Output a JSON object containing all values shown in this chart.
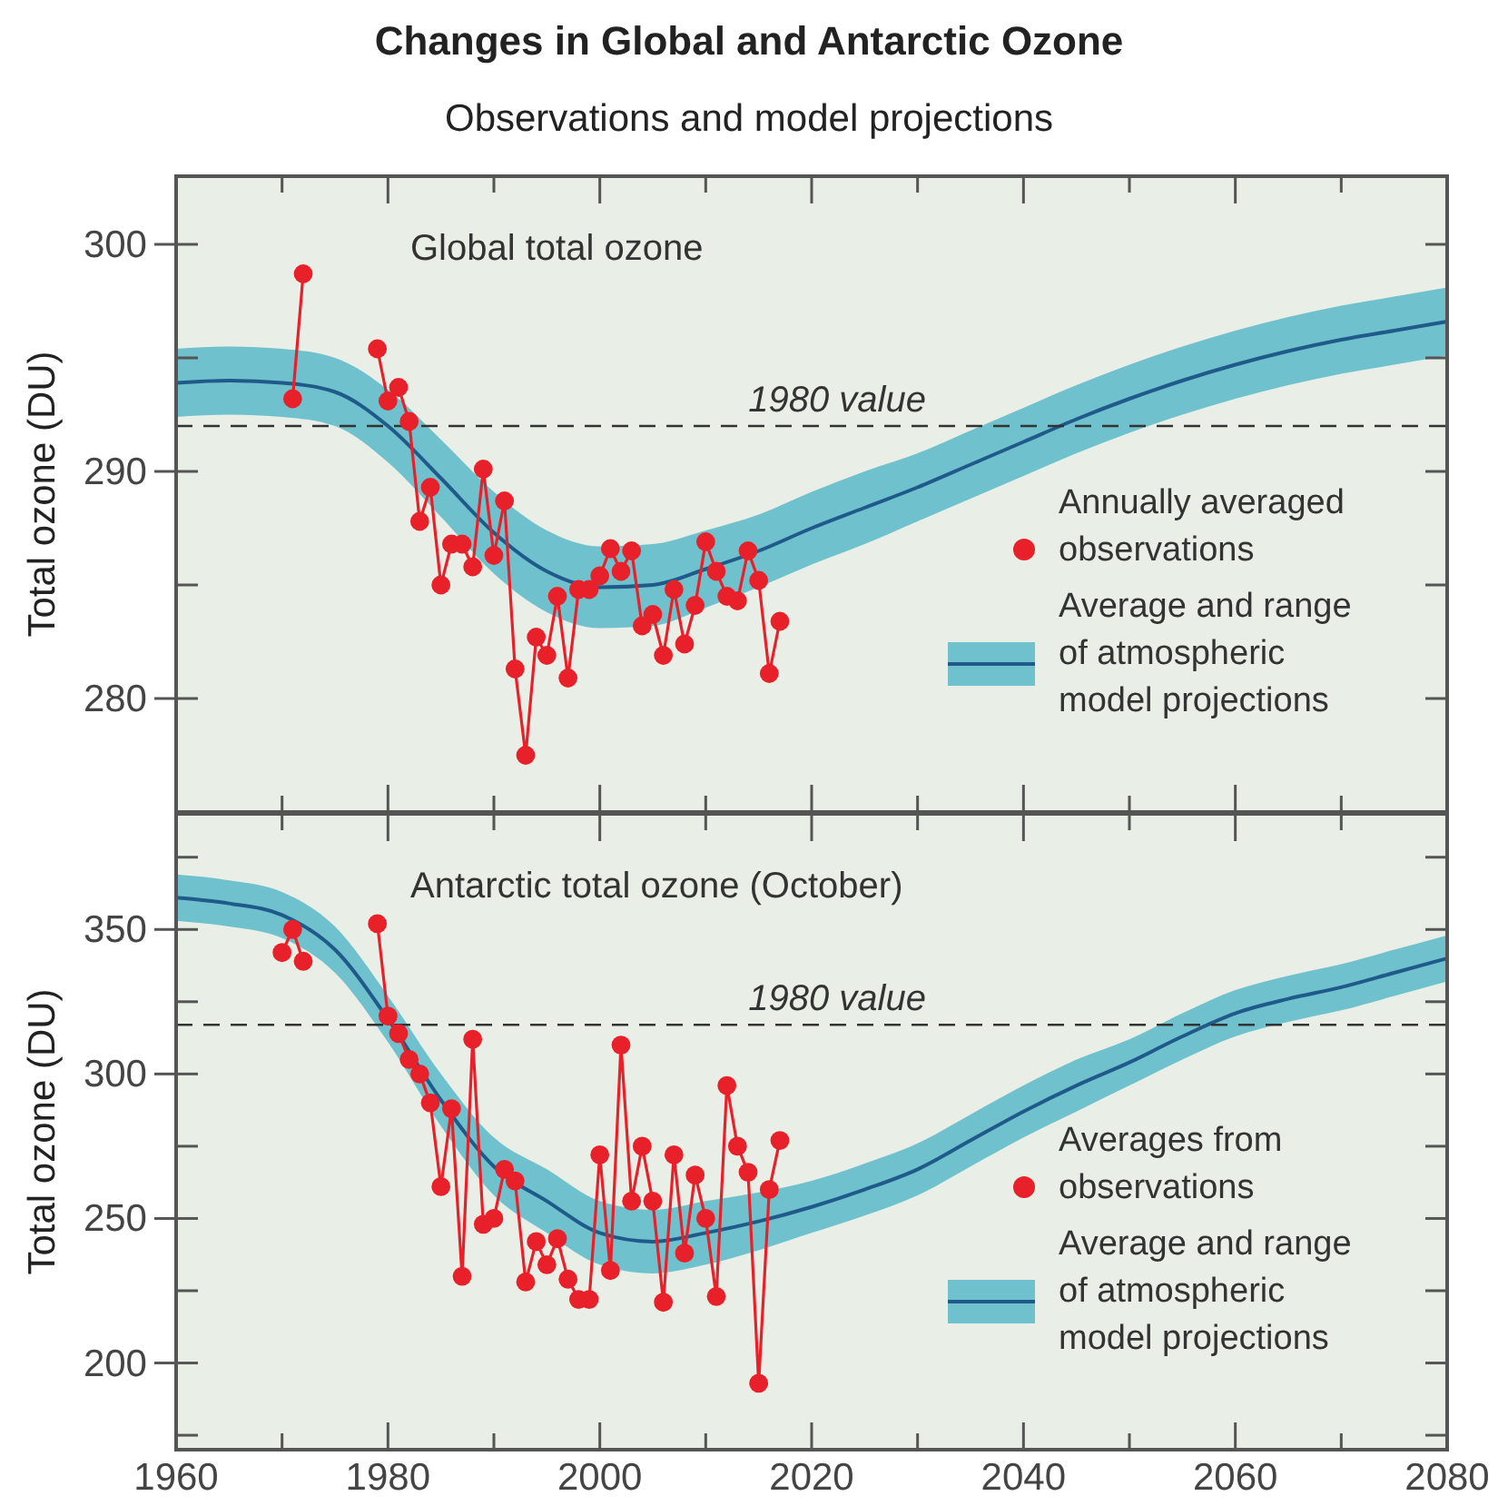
{
  "chart_data": [
    {
      "type": "line",
      "title": "Changes in Global and Antarctic Ozone",
      "subtitle": "Observations and model projections",
      "annotations": [
        "Global total ozone"
      ],
      "ylabel": "Total ozone (DU)",
      "xlim": [
        1960,
        2080
      ],
      "xticks": [
        1960,
        {
          "value": 1970,
          "label": null
        },
        1980,
        {
          "value": 1990,
          "label": null
        },
        2000,
        {
          "value": 2010,
          "label": null
        },
        2020,
        {
          "value": 2030,
          "label": null
        },
        2040,
        {
          "value": 2050,
          "label": null
        },
        2060,
        {
          "value": 2070,
          "label": null
        },
        2080
      ],
      "ylim": [
        275,
        303
      ],
      "yticks": [
        280,
        {
          "value": 285,
          "label": null
        },
        290,
        {
          "value": 295,
          "label": null
        },
        300
      ],
      "tick_labels": "y",
      "legend": "right",
      "ref_lines": [
        {
          "axis": "y",
          "value": 292,
          "label": "1980 value",
          "line_style": "dashed",
          "color": "#333333"
        }
      ],
      "series": [
        {
          "name": "Annually averaged observations",
          "type": "line",
          "marker": "circle",
          "color": "#e8202a",
          "x": [
            1971,
            1972,
            1975,
            1979,
            1980,
            1981,
            1982,
            1983,
            1984,
            1985,
            1986,
            1987,
            1988,
            1989,
            1990,
            1991,
            1992,
            1993,
            1994,
            1995,
            1996,
            1997,
            1998,
            1999,
            2000,
            2001,
            2002,
            2003,
            2004,
            2005,
            2006,
            2007,
            2008,
            2009,
            2010,
            2011,
            2012,
            2013,
            2014,
            2015,
            2016,
            2017
          ],
          "values": [
            293.2,
            298.7,
            null,
            295.4,
            293.1,
            293.7,
            292.2,
            287.8,
            289.3,
            285.0,
            286.8,
            286.8,
            285.8,
            290.1,
            286.3,
            288.7,
            281.3,
            277.5,
            282.7,
            281.9,
            284.5,
            280.9,
            284.8,
            284.8,
            285.4,
            286.6,
            285.6,
            286.5,
            283.2,
            283.7,
            281.9,
            284.8,
            282.4,
            284.1,
            286.9,
            285.6,
            284.5,
            284.3,
            286.5,
            285.2,
            281.1,
            283.4
          ]
        },
        {
          "name": "Average and range of atmospheric model projections",
          "marker": "none",
          "color": "#1f5a8a",
          "x": [
            1960,
            1965,
            1970,
            1975,
            1980,
            1985,
            1990,
            1995,
            2000,
            2005,
            2010,
            2015,
            2020,
            2025,
            2030,
            2035,
            2040,
            2045,
            2050,
            2055,
            2060,
            2065,
            2070,
            2075,
            2080
          ],
          "values": [
            293.9,
            294.0,
            293.9,
            293.5,
            292.0,
            289.7,
            287.3,
            285.6,
            284.9,
            285.0,
            285.7,
            286.5,
            287.5,
            288.4,
            289.3,
            290.3,
            291.3,
            292.3,
            293.2,
            294.0,
            294.7,
            295.3,
            295.8,
            296.2,
            296.6
          ],
          "lower": [
            292.4,
            292.5,
            292.4,
            292.0,
            290.4,
            288.0,
            285.5,
            283.8,
            283.1,
            283.2,
            284.0,
            284.9,
            285.9,
            286.8,
            287.8,
            288.8,
            289.8,
            290.8,
            291.7,
            292.5,
            293.2,
            293.8,
            294.3,
            294.7,
            295.1
          ],
          "upper": [
            295.4,
            295.5,
            295.4,
            295.0,
            293.6,
            291.4,
            289.1,
            287.4,
            286.7,
            286.8,
            287.4,
            288.1,
            289.1,
            290.0,
            290.8,
            291.8,
            292.8,
            293.8,
            294.7,
            295.5,
            296.2,
            296.8,
            297.3,
            297.7,
            298.1
          ]
        }
      ]
    },
    {
      "type": "line",
      "annotations": [
        "Antarctic total ozone (October)"
      ],
      "ylabel": "Total ozone (DU)",
      "xlim": [
        1960,
        2080
      ],
      "xticks": [
        1960,
        {
          "value": 1970,
          "label": null
        },
        1980,
        {
          "value": 1990,
          "label": null
        },
        2000,
        {
          "value": 2010,
          "label": null
        },
        2020,
        {
          "value": 2030,
          "label": null
        },
        2040,
        {
          "value": 2050,
          "label": null
        },
        2060,
        {
          "value": 2070,
          "label": null
        },
        2080
      ],
      "ylim": [
        170,
        390
      ],
      "yticks": [
        {
          "value": 175,
          "label": null
        },
        200,
        {
          "value": 225,
          "label": null
        },
        250,
        {
          "value": 275,
          "label": null
        },
        300,
        {
          "value": 325,
          "label": null
        },
        350,
        {
          "value": 375,
          "label": null
        }
      ],
      "legend": "right",
      "ref_lines": [
        {
          "axis": "y",
          "value": 317,
          "label": "1980 value",
          "line_style": "dashed",
          "color": "#333333"
        }
      ],
      "series": [
        {
          "name": "Averages from observations",
          "type": "line",
          "marker": "circle",
          "color": "#e8202a",
          "x": [
            1970,
            1971,
            1972,
            1975,
            1979,
            1980,
            1981,
            1982,
            1983,
            1984,
            1985,
            1986,
            1987,
            1988,
            1989,
            1990,
            1991,
            1992,
            1993,
            1994,
            1995,
            1996,
            1997,
            1998,
            1999,
            2000,
            2001,
            2002,
            2003,
            2004,
            2005,
            2006,
            2007,
            2008,
            2009,
            2010,
            2011,
            2012,
            2013,
            2014,
            2015,
            2016,
            2017
          ],
          "values": [
            342,
            350,
            339,
            null,
            352,
            320,
            314,
            305,
            300,
            290,
            261,
            288,
            230,
            312,
            248,
            250,
            267,
            263,
            228,
            242,
            234,
            243,
            229,
            222,
            222,
            272,
            232,
            310,
            256,
            275,
            256,
            221,
            272,
            238,
            265,
            250,
            223,
            296,
            275,
            266,
            193,
            260,
            277
          ]
        },
        {
          "name": "Average and range of atmospheric model projections",
          "marker": "none",
          "color": "#1f5a8a",
          "x": [
            1960,
            1965,
            1970,
            1975,
            1980,
            1985,
            1990,
            1995,
            2000,
            2005,
            2010,
            2015,
            2020,
            2025,
            2030,
            2035,
            2040,
            2045,
            2050,
            2055,
            2060,
            2065,
            2070,
            2075,
            2080
          ],
          "values": [
            361,
            359,
            355,
            343,
            319,
            291,
            268,
            256,
            245,
            242,
            245,
            249,
            254,
            260,
            267,
            277,
            287,
            296,
            304,
            313,
            321,
            326,
            330,
            335,
            340
          ],
          "lower": [
            353,
            351,
            347,
            335,
            311,
            282,
            258,
            245,
            234,
            231,
            234,
            239,
            245,
            251,
            258,
            268,
            278,
            287,
            296,
            305,
            313,
            318,
            322,
            327,
            332
          ],
          "upper": [
            369,
            367,
            363,
            351,
            327,
            300,
            278,
            267,
            256,
            253,
            256,
            259,
            263,
            269,
            276,
            286,
            296,
            305,
            312,
            321,
            329,
            334,
            338,
            343,
            348
          ]
        }
      ]
    }
  ]
}
